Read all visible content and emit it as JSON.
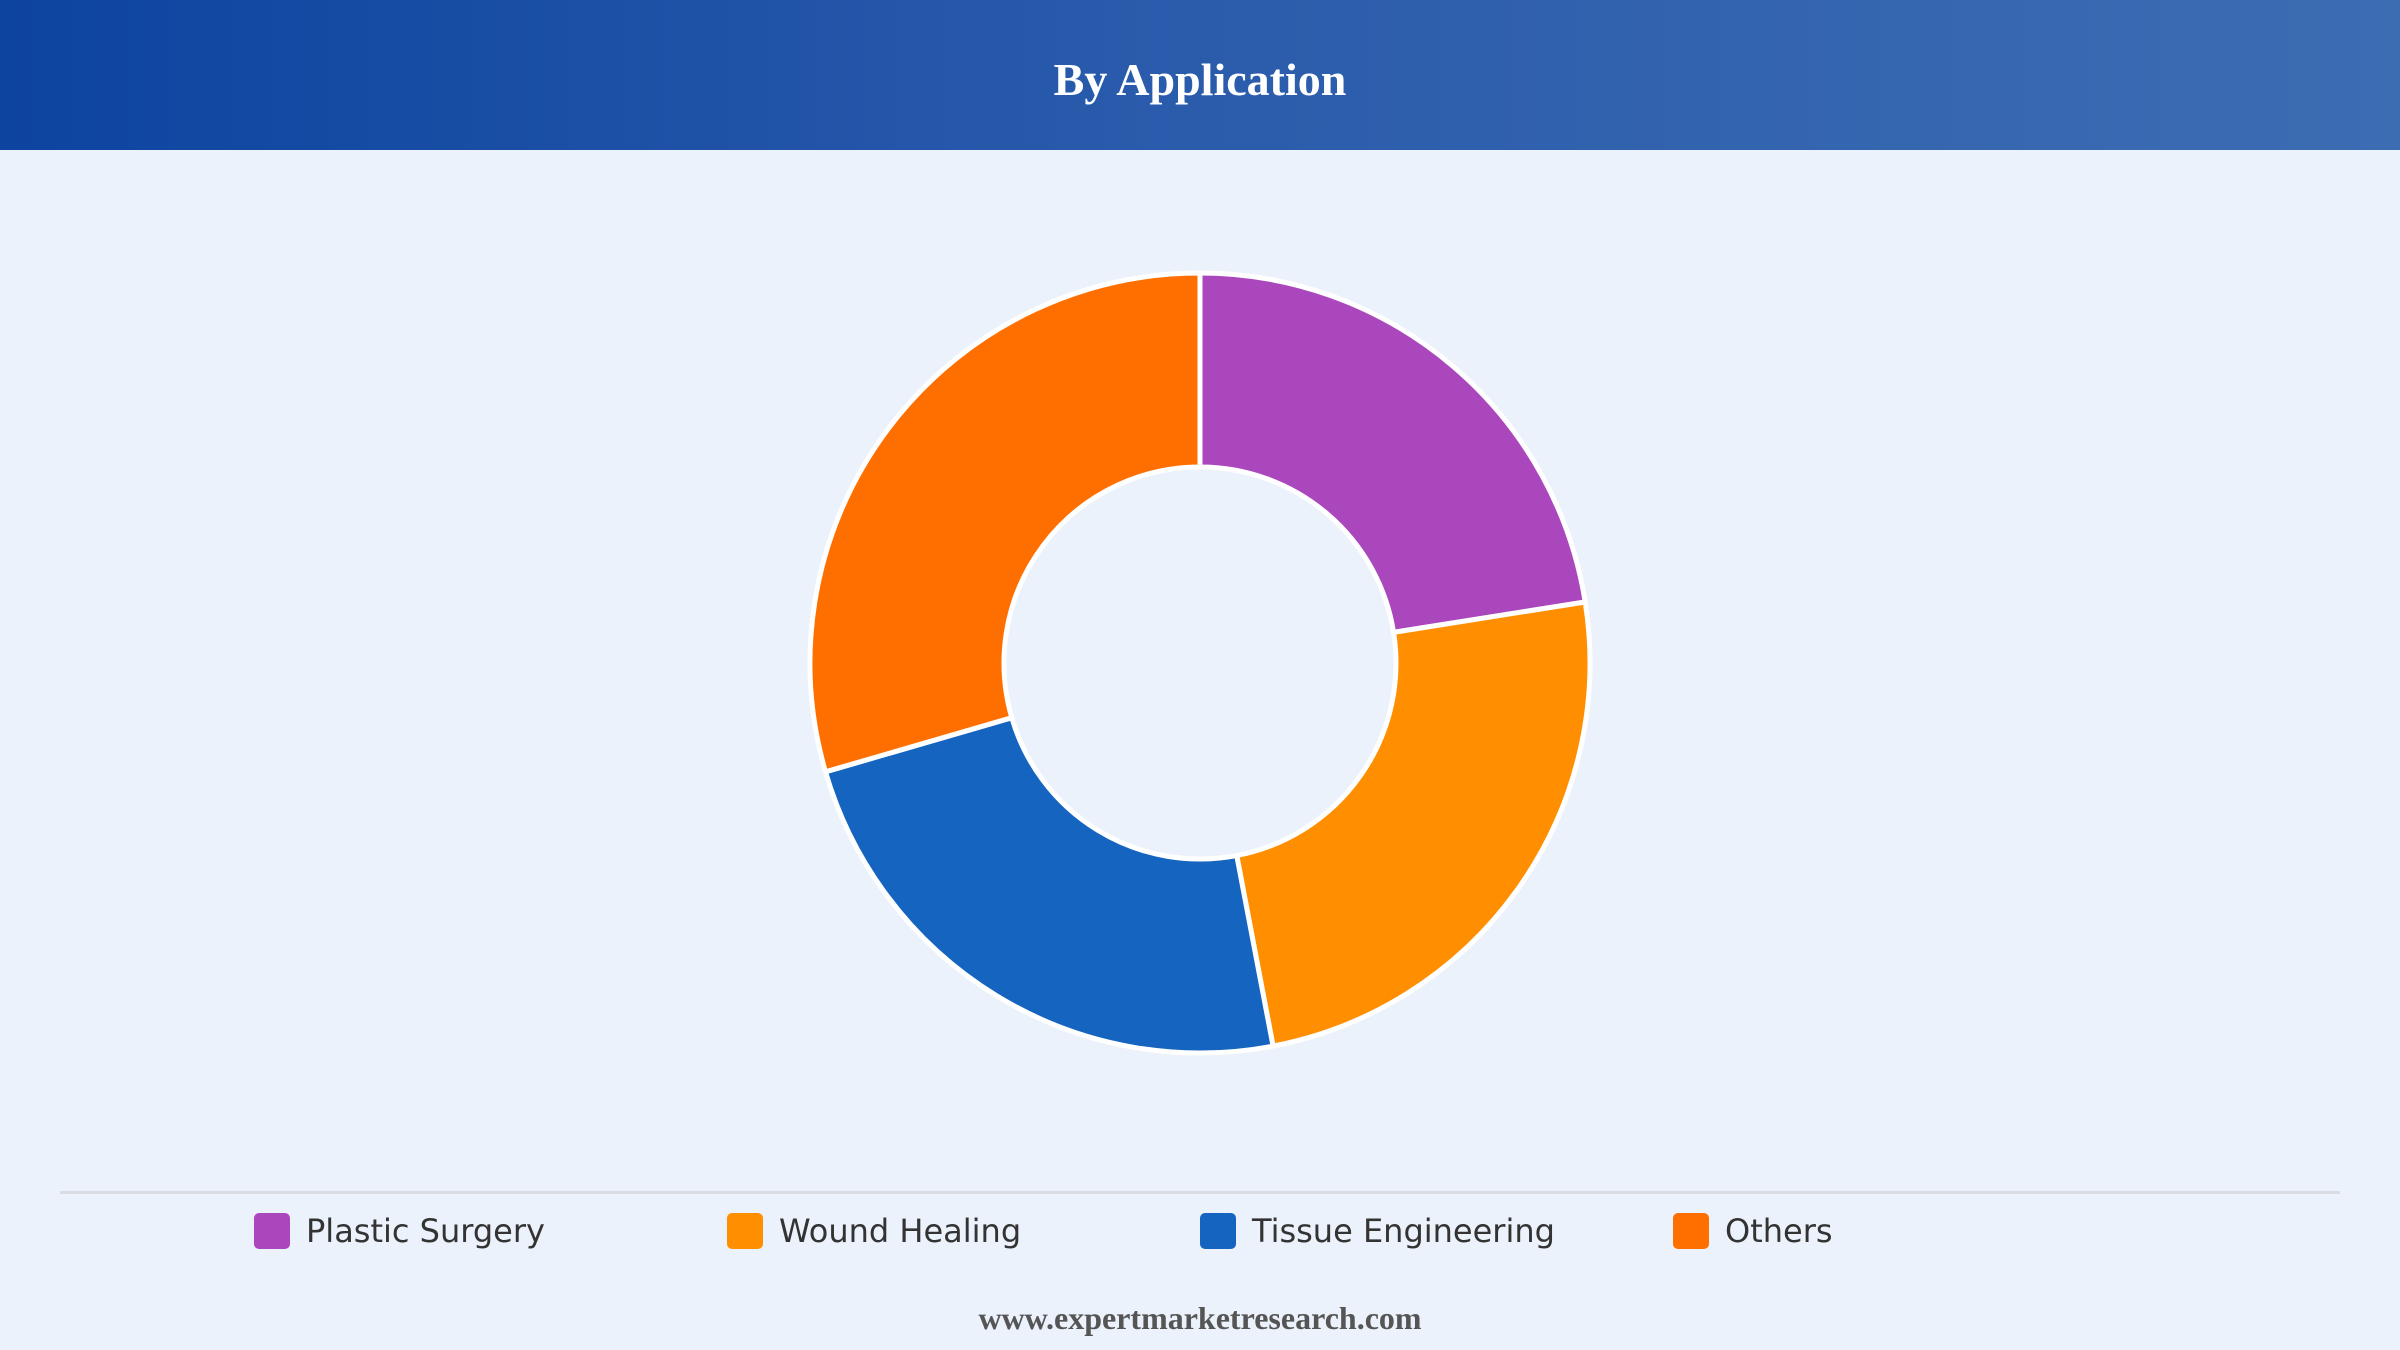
{
  "header": {
    "title": "By Application"
  },
  "chart_data": {
    "type": "pie",
    "variant": "donut",
    "categories": [
      "Plastic Surgery",
      "Wound Healing",
      "Tissue Engineering",
      "Others"
    ],
    "values": [
      22.5,
      24.5,
      23.5,
      29.5
    ],
    "colors": [
      "#ab47bc",
      "#ff8f00",
      "#1565c0",
      "#ff6f00"
    ],
    "legend_position": "bottom"
  },
  "legend": {
    "items": [
      {
        "label": "Plastic Surgery",
        "color": "#ab47bc"
      },
      {
        "label": "Wound Healing",
        "color": "#ff8f00"
      },
      {
        "label": "Tissue Engineering",
        "color": "#1565c0"
      },
      {
        "label": "Others",
        "color": "#ff6f00"
      }
    ]
  },
  "footer": {
    "text": "www.expertmarketresearch.com"
  }
}
